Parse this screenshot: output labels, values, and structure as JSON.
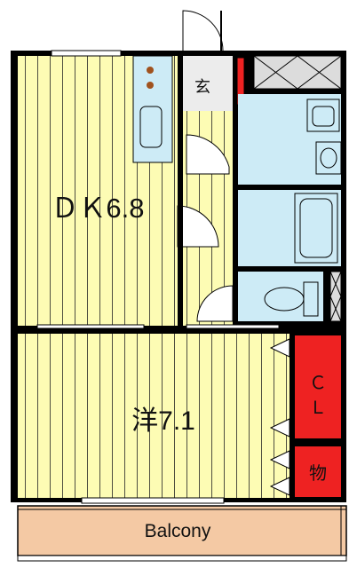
{
  "rooms": {
    "dk": {
      "label": "ＤＫ6.8"
    },
    "western": {
      "label": "洋7.1"
    },
    "entrance": {
      "label": "玄"
    },
    "closet": {
      "label_top": "Ｃ",
      "label_bottom": "Ｌ"
    },
    "storage": {
      "label": "物"
    },
    "balcony": {
      "label": "Balcony"
    }
  },
  "colors": {
    "floor_yellow": "#fdfcb4",
    "wet_area_blue": "#cdebf6",
    "closet_red": "#ee2222",
    "balcony_tan": "#f4c9a4",
    "wall": "#000000"
  }
}
